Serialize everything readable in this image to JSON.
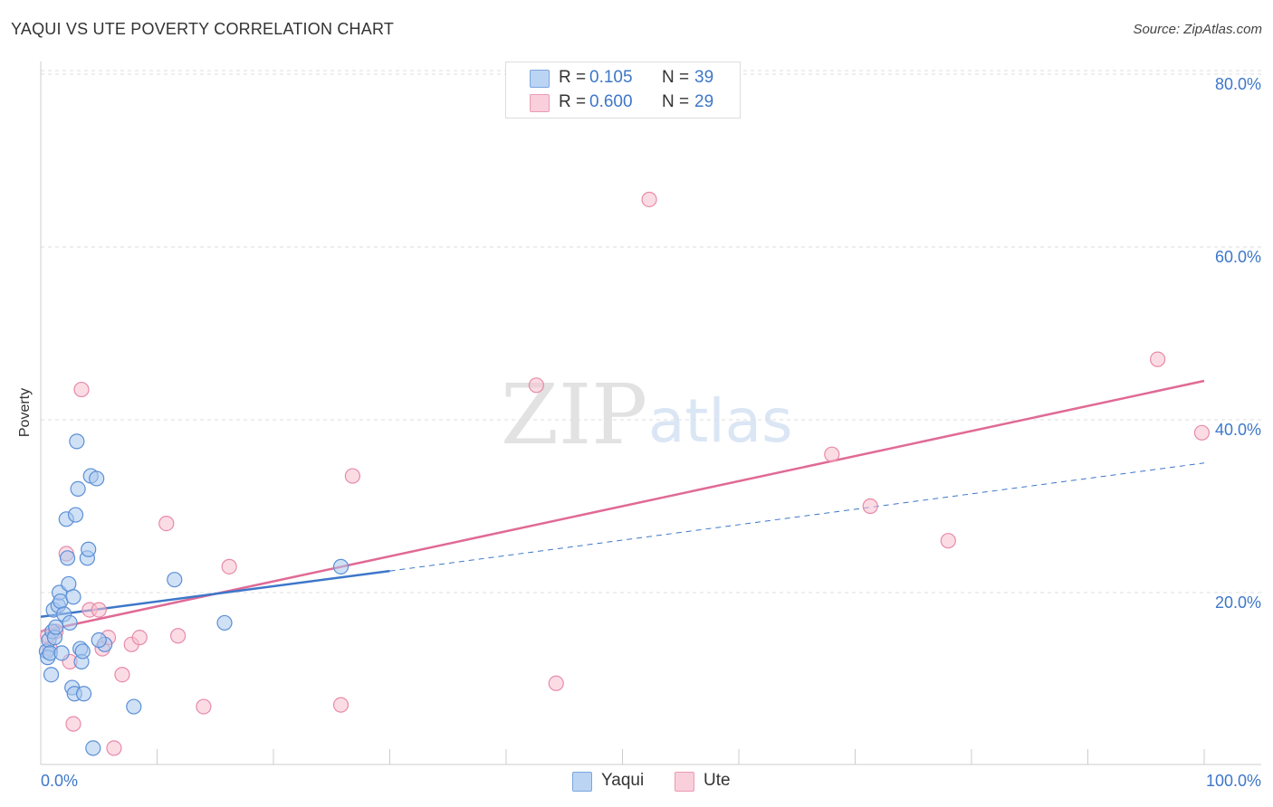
{
  "header": {
    "title": "YAQUI VS UTE POVERTY CORRELATION CHART",
    "source": "Source: ZipAtlas.com"
  },
  "watermark": {
    "zip": "ZIP",
    "atlas": "atlas"
  },
  "legend": {
    "yaqui": {
      "r_label": "R =",
      "r_value": "0.105",
      "n_label": "N =",
      "n_value": "39"
    },
    "ute": {
      "r_label": "R =",
      "r_value": "0.600",
      "n_label": "N =",
      "n_value": "29"
    }
  },
  "colors": {
    "yaqui_fill": "#a9c8ee",
    "yaqui_stroke": "#5b8fd6",
    "yaqui_line": "#3d77c9",
    "ute_fill": "#f7bfd0",
    "ute_stroke": "#e88aa8",
    "ute_line": "#e06a95",
    "axis_text": "#3d77c9",
    "grid": "#dddddd"
  },
  "chart_data": {
    "type": "scatter",
    "title": "YAQUI VS UTE POVERTY CORRELATION CHART",
    "xlabel": "",
    "ylabel": "Poverty",
    "xlim": [
      0,
      100
    ],
    "ylim": [
      0,
      82
    ],
    "x_tick_labels": [
      "0.0%",
      "100.0%"
    ],
    "y_ticks": [
      20,
      40,
      60,
      80
    ],
    "y_tick_labels": [
      "20.0%",
      "40.0%",
      "60.0%",
      "80.0%"
    ],
    "series": [
      {
        "name": "Yaqui",
        "points": [
          [
            0.5,
            13.2
          ],
          [
            0.6,
            12.5
          ],
          [
            0.7,
            14.5
          ],
          [
            0.8,
            13.0
          ],
          [
            0.9,
            10.5
          ],
          [
            1.0,
            15.5
          ],
          [
            1.1,
            18.0
          ],
          [
            1.2,
            14.8
          ],
          [
            1.3,
            16.0
          ],
          [
            1.5,
            18.5
          ],
          [
            1.6,
            20.0
          ],
          [
            1.7,
            19.0
          ],
          [
            1.8,
            13.0
          ],
          [
            2.0,
            17.5
          ],
          [
            2.2,
            28.5
          ],
          [
            2.3,
            24.0
          ],
          [
            2.4,
            21.0
          ],
          [
            2.5,
            16.5
          ],
          [
            2.7,
            9.0
          ],
          [
            2.8,
            19.5
          ],
          [
            2.9,
            8.3
          ],
          [
            3.0,
            29.0
          ],
          [
            3.1,
            37.5
          ],
          [
            3.2,
            32.0
          ],
          [
            3.4,
            13.5
          ],
          [
            3.5,
            12.0
          ],
          [
            3.6,
            13.2
          ],
          [
            3.7,
            8.3
          ],
          [
            4.0,
            24.0
          ],
          [
            4.1,
            25.0
          ],
          [
            4.3,
            33.5
          ],
          [
            4.5,
            2.0
          ],
          [
            4.8,
            33.2
          ],
          [
            5.5,
            14.0
          ],
          [
            8.0,
            6.8
          ],
          [
            11.5,
            21.5
          ],
          [
            15.8,
            16.5
          ],
          [
            25.8,
            23.0
          ],
          [
            5.0,
            14.5
          ]
        ],
        "trend": {
          "x": [
            0,
            30
          ],
          "y": [
            17.2,
            22.5
          ]
        },
        "trend_extension": {
          "x": [
            30,
            100
          ],
          "y": [
            22.5,
            35.0
          ]
        }
      },
      {
        "name": "Ute",
        "points": [
          [
            0.6,
            15.0
          ],
          [
            0.8,
            13.5
          ],
          [
            1.3,
            15.5
          ],
          [
            2.2,
            24.5
          ],
          [
            2.5,
            12.0
          ],
          [
            2.8,
            4.8
          ],
          [
            3.5,
            43.5
          ],
          [
            4.2,
            18.0
          ],
          [
            5.0,
            18.0
          ],
          [
            5.3,
            13.5
          ],
          [
            5.8,
            14.8
          ],
          [
            6.3,
            2.0
          ],
          [
            7.0,
            10.5
          ],
          [
            7.8,
            14.0
          ],
          [
            8.5,
            14.8
          ],
          [
            10.8,
            28.0
          ],
          [
            11.8,
            15.0
          ],
          [
            14.0,
            6.8
          ],
          [
            16.2,
            23.0
          ],
          [
            25.8,
            7.0
          ],
          [
            26.8,
            33.5
          ],
          [
            42.6,
            44.0
          ],
          [
            44.3,
            9.5
          ],
          [
            52.3,
            65.5
          ],
          [
            68.0,
            36.0
          ],
          [
            71.3,
            30.0
          ],
          [
            78.0,
            26.0
          ],
          [
            96.0,
            47.0
          ],
          [
            99.8,
            38.5
          ]
        ],
        "trend": {
          "x": [
            0,
            100
          ],
          "y": [
            15.5,
            44.5
          ]
        }
      }
    ]
  },
  "bottom_legend": {
    "yaqui": "Yaqui",
    "ute": "Ute"
  }
}
